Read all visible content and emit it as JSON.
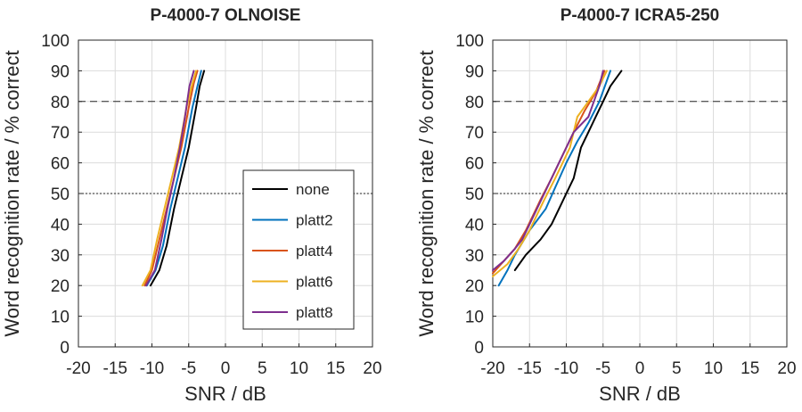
{
  "chart_data": [
    {
      "type": "line",
      "title": "P-4000-7 OLNOISE",
      "xlabel": "SNR / dB",
      "ylabel": "Word recognition rate / % correct",
      "xlim": [
        -20,
        20
      ],
      "ylim": [
        0,
        100
      ],
      "xticks": [
        -20,
        -15,
        -10,
        -5,
        0,
        5,
        10,
        15,
        20
      ],
      "yticks": [
        0,
        10,
        20,
        30,
        40,
        50,
        60,
        70,
        80,
        90,
        100
      ],
      "grid": true,
      "reference_lines": [
        {
          "y": 80,
          "style": "dashed"
        },
        {
          "y": 50,
          "style": "dotted"
        }
      ],
      "legend": {
        "position": "lower-right-inside",
        "entries": [
          "none",
          "platt2",
          "platt4",
          "platt6",
          "platt8"
        ]
      },
      "series": [
        {
          "name": "none",
          "color": "#000000",
          "x": [
            -10.2,
            -9.0,
            -8.0,
            -7.0,
            -6.0,
            -5.0,
            -4.0,
            -3.5,
            -2.9
          ],
          "y": [
            20,
            25,
            33,
            45,
            55,
            65,
            78,
            85,
            90
          ]
        },
        {
          "name": "platt2",
          "color": "#0072BD",
          "x": [
            -10.7,
            -9.5,
            -8.5,
            -7.5,
            -6.5,
            -5.5,
            -4.5,
            -3.8,
            -3.3
          ],
          "y": [
            20,
            25,
            33,
            45,
            55,
            65,
            78,
            85,
            90
          ]
        },
        {
          "name": "platt4",
          "color": "#D95319",
          "x": [
            -11.0,
            -10.0,
            -9.0,
            -8.0,
            -7.0,
            -6.0,
            -5.0,
            -4.3,
            -3.8
          ],
          "y": [
            20,
            25,
            35,
            45,
            55,
            65,
            78,
            86,
            90
          ]
        },
        {
          "name": "platt6",
          "color": "#EDB120",
          "x": [
            -11.3,
            -10.2,
            -9.3,
            -8.3,
            -7.3,
            -6.3,
            -5.3,
            -4.6,
            -4.0
          ],
          "y": [
            20,
            25,
            35,
            45,
            55,
            65,
            78,
            85,
            90
          ]
        },
        {
          "name": "platt8",
          "color": "#7E2F8E",
          "x": [
            -10.8,
            -9.6,
            -8.7,
            -7.9,
            -7.0,
            -6.2,
            -5.5,
            -4.9,
            -4.3
          ],
          "y": [
            20,
            25,
            35,
            45,
            55,
            65,
            75,
            85,
            90
          ]
        }
      ]
    },
    {
      "type": "line",
      "title": "P-4000-7 ICRA5-250",
      "xlabel": "SNR / dB",
      "ylabel": "Word recognition rate / % correct",
      "xlim": [
        -20,
        20
      ],
      "ylim": [
        0,
        100
      ],
      "xticks": [
        -20,
        -15,
        -10,
        -5,
        0,
        5,
        10,
        15,
        20
      ],
      "yticks": [
        0,
        10,
        20,
        30,
        40,
        50,
        60,
        70,
        80,
        90,
        100
      ],
      "grid": true,
      "reference_lines": [
        {
          "y": 80,
          "style": "dashed"
        },
        {
          "y": 50,
          "style": "dotted"
        }
      ],
      "series": [
        {
          "name": "none",
          "color": "#000000",
          "x": [
            -17.0,
            -15.5,
            -13.5,
            -12.0,
            -11.0,
            -10.0,
            -9.0,
            -8.0,
            -7.0,
            -6.0,
            -5.0,
            -4.0,
            -2.5
          ],
          "y": [
            25,
            30,
            35,
            40,
            45,
            50,
            55,
            65,
            70,
            75,
            80,
            85,
            90
          ]
        },
        {
          "name": "platt2",
          "color": "#0072BD",
          "x": [
            -19.2,
            -18.0,
            -17.0,
            -15.0,
            -12.8,
            -11.5,
            -10.0,
            -8.5,
            -7.0,
            -5.5,
            -4.0
          ],
          "y": [
            20,
            25,
            30,
            38,
            45,
            52,
            60,
            67,
            73,
            80,
            90
          ]
        },
        {
          "name": "platt4",
          "color": "#D95319",
          "x": [
            -20.0,
            -18.5,
            -17.0,
            -15.5,
            -14.5,
            -13.5,
            -12.0,
            -11.0,
            -10.0,
            -9.0,
            -7.5,
            -6.0,
            -4.8
          ],
          "y": [
            24,
            28,
            32,
            38,
            43,
            48,
            55,
            60,
            65,
            70,
            77,
            83,
            90
          ]
        },
        {
          "name": "platt6",
          "color": "#EDB120",
          "x": [
            -20.0,
            -18.0,
            -16.5,
            -15.0,
            -14.0,
            -13.0,
            -11.5,
            -10.5,
            -9.5,
            -8.5,
            -7.0,
            -5.5,
            -4.5
          ],
          "y": [
            23,
            27,
            32,
            38,
            43,
            48,
            55,
            60,
            65,
            75,
            80,
            85,
            90
          ]
        },
        {
          "name": "platt8",
          "color": "#7E2F8E",
          "x": [
            -20.0,
            -18.5,
            -17.0,
            -16.0,
            -15.0,
            -14.0,
            -13.0,
            -12.0,
            -11.0,
            -10.0,
            -9.0,
            -7.0,
            -5.5,
            -5.0
          ],
          "y": [
            25,
            28,
            32,
            35,
            40,
            45,
            50,
            55,
            60,
            65,
            70,
            75,
            85,
            90
          ]
        }
      ]
    }
  ]
}
